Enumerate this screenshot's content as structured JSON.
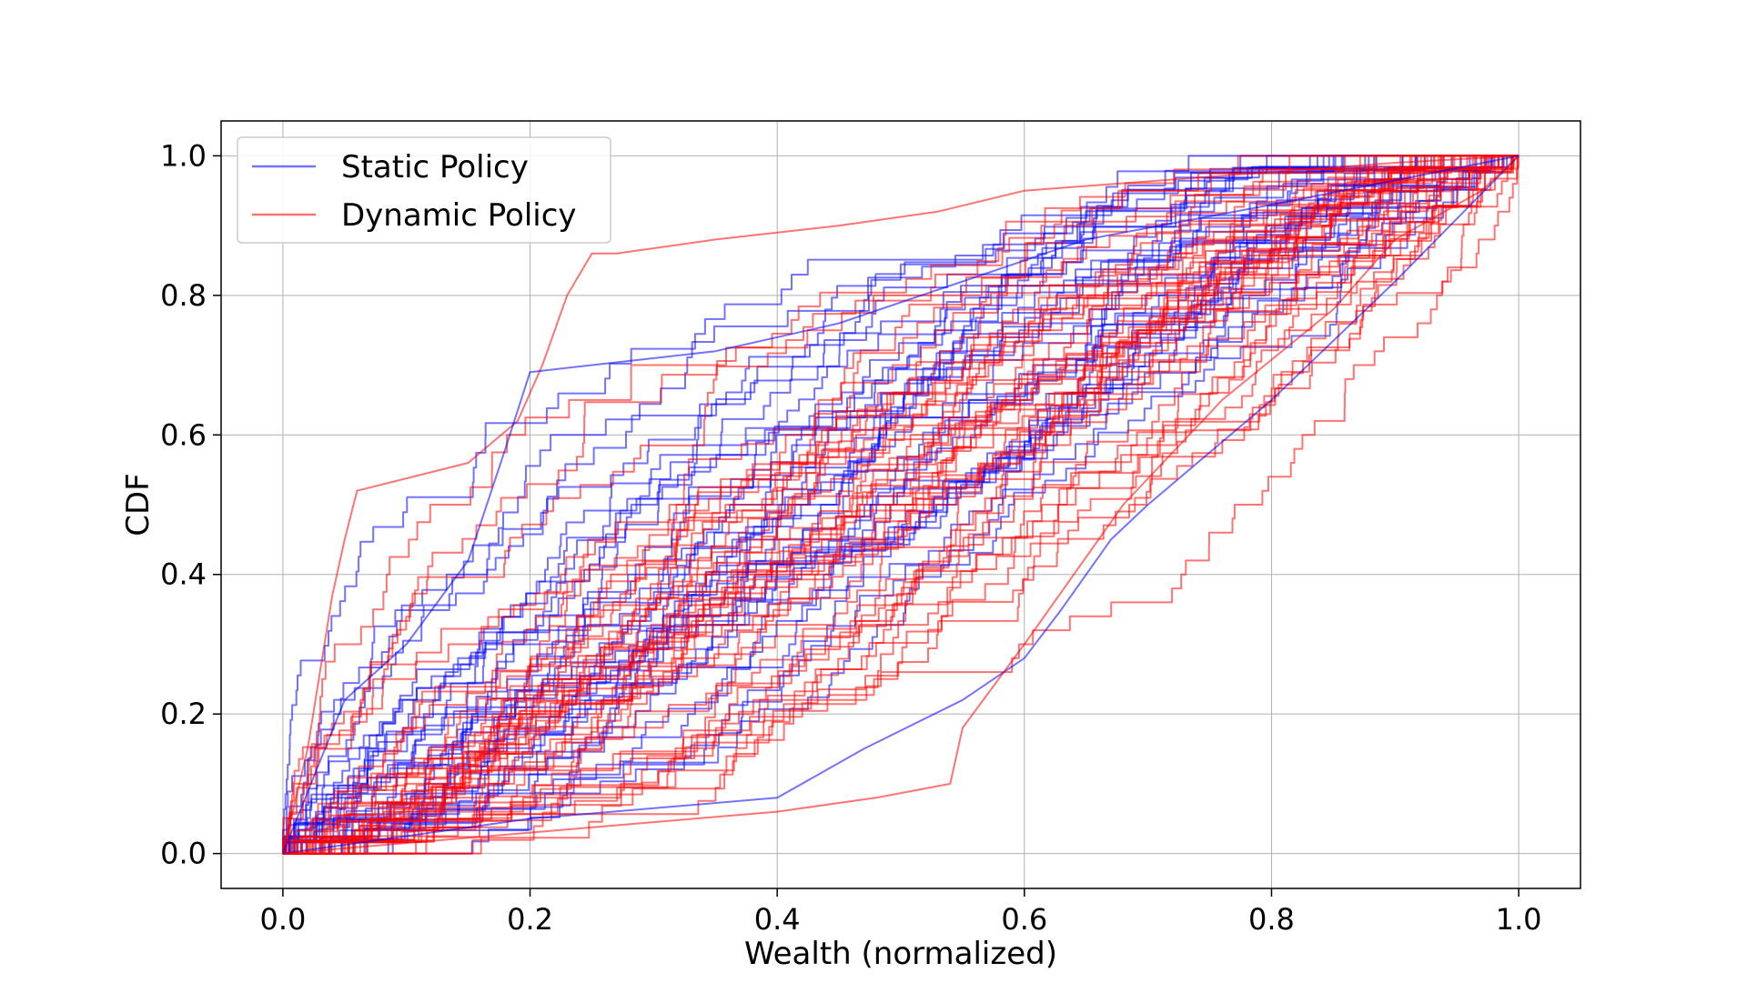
{
  "chart_data": {
    "type": "line",
    "title": "",
    "xlabel": "Wealth (normalized)",
    "ylabel": "CDF",
    "xlim": [
      -0.05,
      1.05
    ],
    "ylim": [
      -0.05,
      1.05
    ],
    "xticks": [
      "0.0",
      "0.2",
      "0.4",
      "0.6",
      "0.8",
      "1.0"
    ],
    "yticks": [
      "0.0",
      "0.2",
      "0.4",
      "0.6",
      "0.8",
      "1.0"
    ],
    "grid": true,
    "legend_position": "top-left",
    "series_groups": [
      {
        "name": "Static Policy",
        "color": "#0000ff",
        "opacity": 0.55,
        "count": 35,
        "approx_median_x_at_cdf": {
          "0.2": 0.22,
          "0.4": 0.33,
          "0.6": 0.46,
          "0.8": 0.65
        }
      },
      {
        "name": "Dynamic Policy",
        "color": "#ff0000",
        "opacity": 0.55,
        "count": 45,
        "approx_median_x_at_cdf": {
          "0.2": 0.23,
          "0.4": 0.37,
          "0.6": 0.52,
          "0.8": 0.69
        }
      }
    ],
    "representative_series": [
      {
        "name": "Dynamic Policy",
        "x": [
          0,
          0.02,
          0.04,
          0.05,
          0.06,
          0.15,
          0.19,
          0.21,
          0.23,
          0.25,
          0.27,
          0.35,
          0.45,
          0.53,
          0.6,
          0.75,
          0.9,
          1.0
        ],
        "y": [
          0,
          0.15,
          0.37,
          0.45,
          0.52,
          0.56,
          0.62,
          0.7,
          0.8,
          0.86,
          0.86,
          0.88,
          0.9,
          0.92,
          0.95,
          0.97,
          0.99,
          1.0
        ]
      },
      {
        "name": "Static Policy",
        "x": [
          0,
          0.05,
          0.1,
          0.15,
          0.18,
          0.2,
          0.25,
          0.35,
          0.45,
          0.55,
          0.65,
          0.8,
          1.0
        ],
        "y": [
          0,
          0.22,
          0.3,
          0.42,
          0.58,
          0.69,
          0.7,
          0.72,
          0.76,
          0.82,
          0.88,
          0.93,
          1.0
        ]
      },
      {
        "name": "Static Policy",
        "x": [
          0,
          0.2,
          0.4,
          0.47,
          0.55,
          0.6,
          0.63,
          0.67,
          0.7,
          0.8,
          0.9,
          1.0
        ],
        "y": [
          0,
          0.05,
          0.08,
          0.15,
          0.22,
          0.28,
          0.35,
          0.45,
          0.5,
          0.65,
          0.82,
          1.0
        ]
      },
      {
        "name": "Dynamic Policy",
        "x": [
          0,
          0.2,
          0.4,
          0.48,
          0.54,
          0.55,
          0.6,
          0.68,
          0.76,
          0.85,
          0.9,
          0.97,
          1.0
        ],
        "y": [
          0,
          0.03,
          0.06,
          0.08,
          0.1,
          0.18,
          0.3,
          0.5,
          0.65,
          0.78,
          0.88,
          0.95,
          1.0
        ]
      }
    ]
  }
}
